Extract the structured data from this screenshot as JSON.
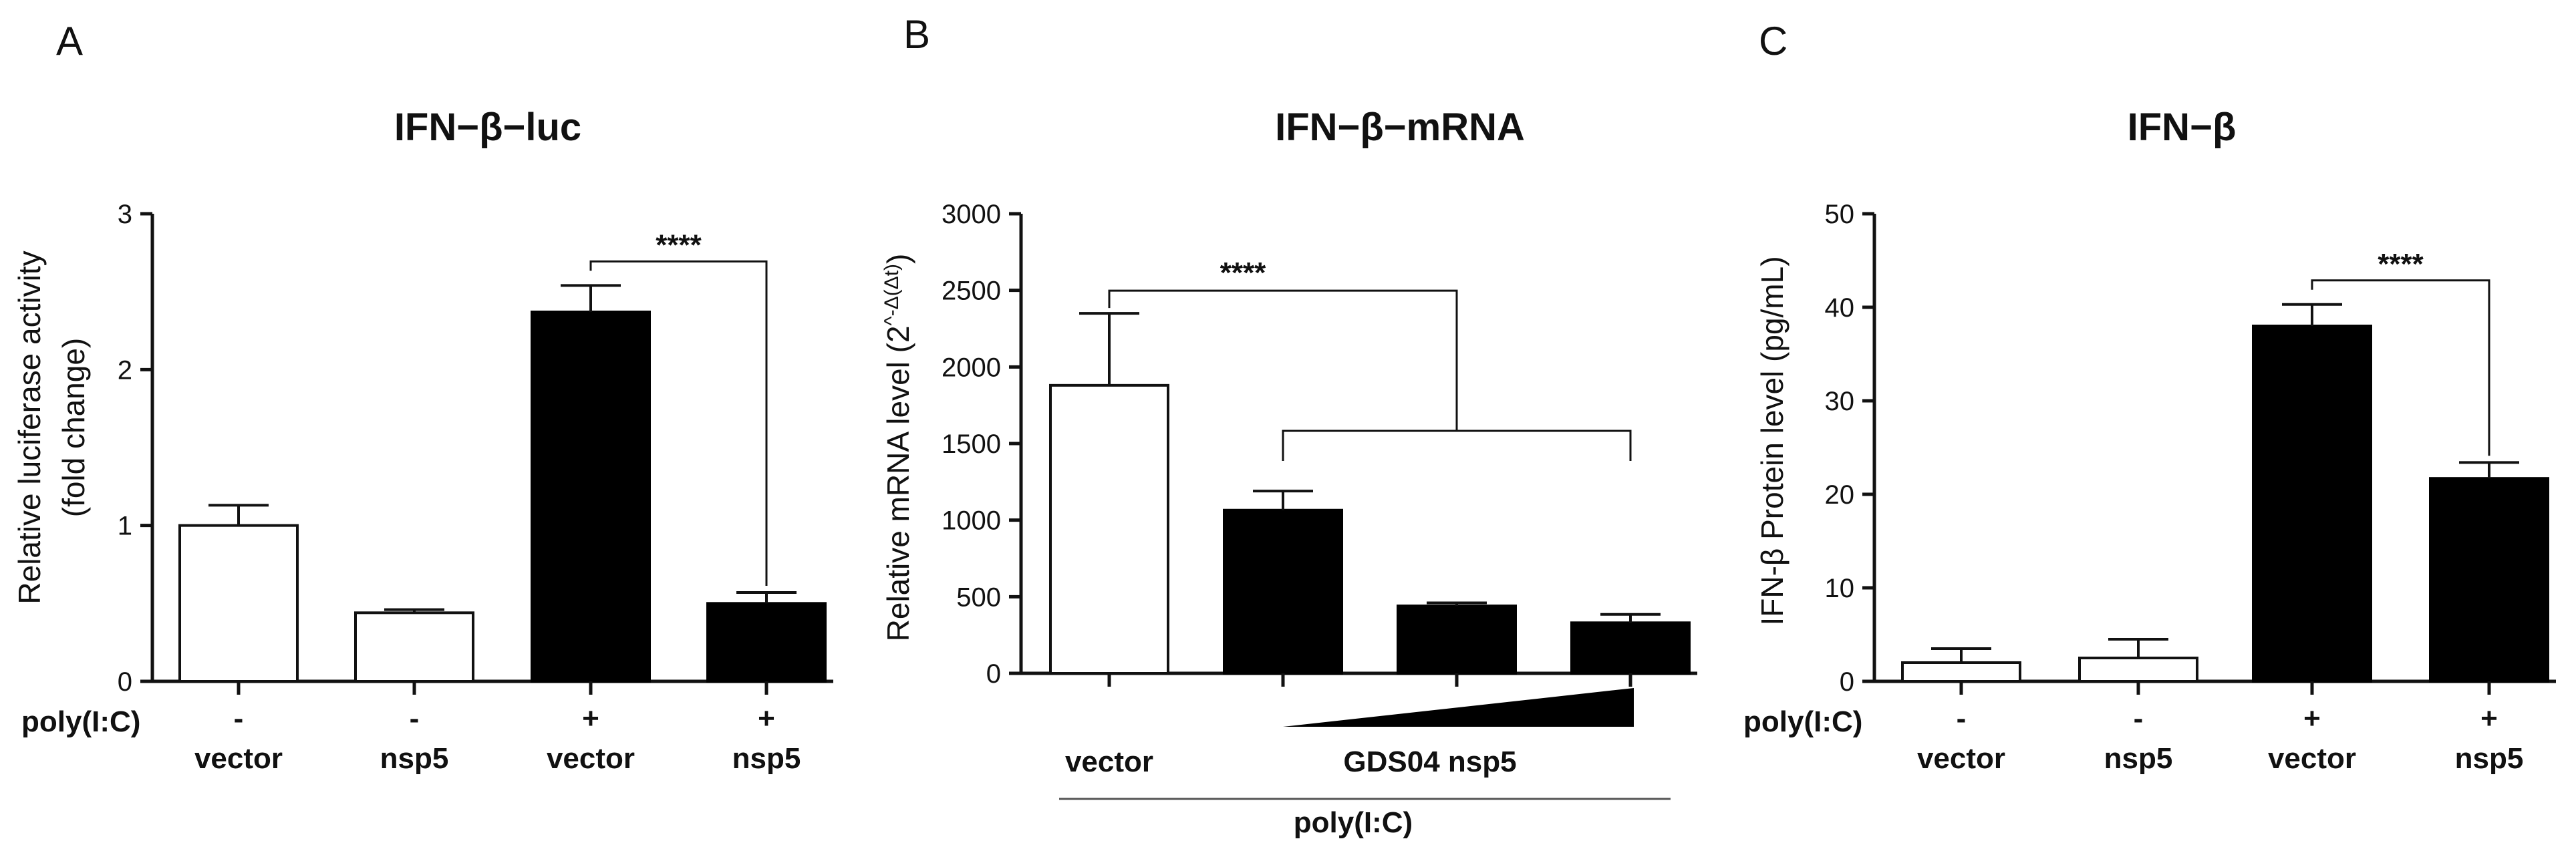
{
  "chart_data": [
    {
      "type": "bar",
      "panel": "A",
      "title": "IFN−β−luc",
      "ylabel_line1": "Relative luciferase activity",
      "ylabel_line2": "(fold change)",
      "ylim": [
        0,
        3
      ],
      "yticks": [
        "0",
        "1",
        "2",
        "3"
      ],
      "row_label": "poly(I:C)",
      "signs": [
        "-",
        "-",
        "+",
        "+"
      ],
      "categories": [
        "vector",
        "nsp5",
        "vector",
        "nsp5"
      ],
      "values": [
        1.0,
        0.44,
        2.37,
        0.5
      ],
      "errors": [
        0.13,
        0.02,
        0.17,
        0.07
      ],
      "fill": [
        "white",
        "white",
        "black",
        "black"
      ],
      "significance": "****",
      "bar_color": "#000000"
    },
    {
      "type": "bar",
      "panel": "B",
      "title": "IFN−β−mRNA",
      "ylabel_main": "Relative mRNA level (2",
      "ylabel_sup": "^-Δ(Δt)",
      "ylabel_close": ")",
      "ylim": [
        0,
        3000
      ],
      "yticks": [
        "0",
        "500",
        "1000",
        "1500",
        "2000",
        "2500",
        "3000"
      ],
      "values": [
        1880,
        1065,
        440,
        330
      ],
      "errors": [
        470,
        125,
        20,
        55
      ],
      "fill": [
        "white",
        "black",
        "black",
        "black"
      ],
      "significance": "****",
      "label_vector": "vector",
      "label_group": "GDS04 nsp5",
      "label_treatment": "poly(I:C)"
    },
    {
      "type": "bar",
      "panel": "C",
      "title": "IFN−β",
      "ylabel": "IFN-β Protein level (pg/mL)",
      "ylim": [
        0,
        50
      ],
      "yticks": [
        "0",
        "10",
        "20",
        "30",
        "40",
        "50"
      ],
      "row_label": "poly(I:C)",
      "signs": [
        "-",
        "-",
        "+",
        "+"
      ],
      "categories": [
        "vector",
        "nsp5",
        "vector",
        "nsp5"
      ],
      "values": [
        2.0,
        2.5,
        38.0,
        21.7
      ],
      "errors": [
        1.5,
        2.0,
        2.3,
        1.7
      ],
      "fill": [
        "white",
        "white",
        "black",
        "black"
      ],
      "significance": "****"
    }
  ]
}
